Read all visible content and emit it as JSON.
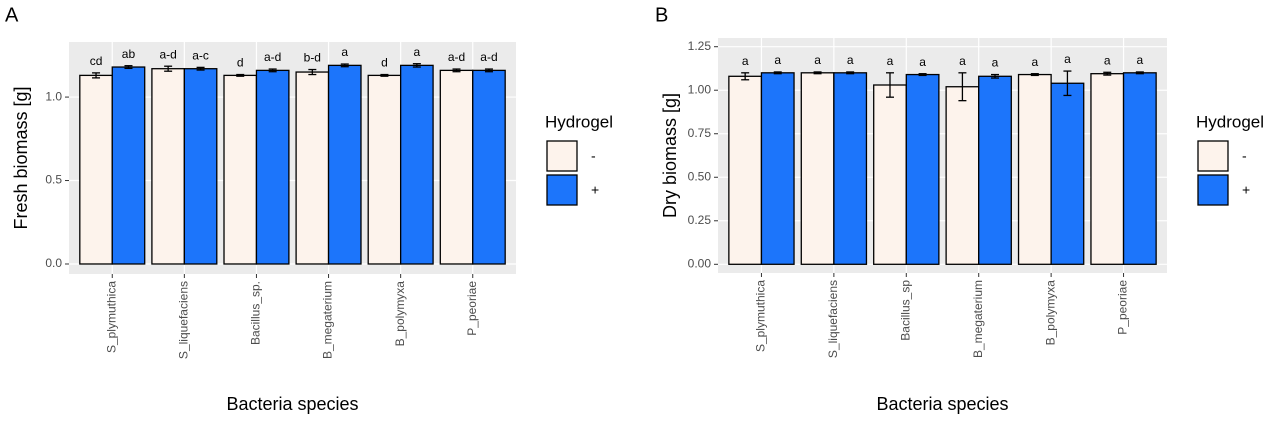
{
  "chart_data": [
    {
      "type": "bar",
      "tag": "A",
      "xlabel": "Bacteria species",
      "ylabel": "Fresh biomass [g]",
      "categories": [
        "S_plymuthica",
        "S_liquefaciens",
        "Bacillus_sp.",
        "B_megaterium",
        "B_polymyxa",
        "P_peoriae"
      ],
      "ylim": [
        -0.06,
        1.33
      ],
      "yticks": [
        {
          "value": 0,
          "label": "0.0"
        },
        {
          "value": 0.5,
          "label": "0.5"
        },
        {
          "value": 1,
          "label": "1.0"
        }
      ],
      "grid": true,
      "legend_title": "Hydrogel",
      "series": [
        {
          "name": "-",
          "color": "#fdf3ec",
          "values": [
            1.13,
            1.17,
            1.13,
            1.15,
            1.13,
            1.16
          ],
          "errors": [
            0.015,
            0.015,
            0.005,
            0.015,
            0.005,
            0.008
          ],
          "letters": [
            "cd",
            "a-d",
            "d",
            "b-d",
            "d",
            "a-d"
          ]
        },
        {
          "name": "+",
          "color": "#1c75fb",
          "values": [
            1.18,
            1.17,
            1.16,
            1.19,
            1.19,
            1.16
          ],
          "errors": [
            0.008,
            0.008,
            0.008,
            0.008,
            0.01,
            0.008
          ],
          "letters": [
            "ab",
            "a-c",
            "a-d",
            "a",
            "a",
            "a-d"
          ]
        }
      ]
    },
    {
      "type": "bar",
      "tag": "B",
      "xlabel": "Bacteria species",
      "ylabel": "Dry biomass [g]",
      "categories": [
        "S_plymuthica",
        "S_liquefaciens",
        "Bacillus_sp",
        "B_megaterium",
        "B_polymyxa",
        "P_peoriae"
      ],
      "ylim": [
        -0.05,
        1.3
      ],
      "yticks": [
        {
          "value": 0,
          "label": "0.00"
        },
        {
          "value": 0.25,
          "label": "0.25"
        },
        {
          "value": 0.5,
          "label": "0.50"
        },
        {
          "value": 0.75,
          "label": "0.75"
        },
        {
          "value": 1,
          "label": "1.00"
        },
        {
          "value": 1.25,
          "label": "1.25"
        }
      ],
      "grid": true,
      "legend_title": "Hydrogel",
      "series": [
        {
          "name": "-",
          "color": "#fdf3ec",
          "values": [
            1.08,
            1.1,
            1.03,
            1.02,
            1.09,
            1.095
          ],
          "errors": [
            0.02,
            0.005,
            0.07,
            0.08,
            0.005,
            0.008
          ],
          "letters": [
            "a",
            "a",
            "a",
            "a",
            "a",
            "a"
          ]
        },
        {
          "name": "+",
          "color": "#1c75fb",
          "values": [
            1.1,
            1.1,
            1.09,
            1.08,
            1.04,
            1.1
          ],
          "errors": [
            0.005,
            0.005,
            0.005,
            0.01,
            0.07,
            0.005
          ],
          "letters": [
            "a",
            "a",
            "a",
            "a",
            "a",
            "a"
          ]
        }
      ]
    }
  ]
}
